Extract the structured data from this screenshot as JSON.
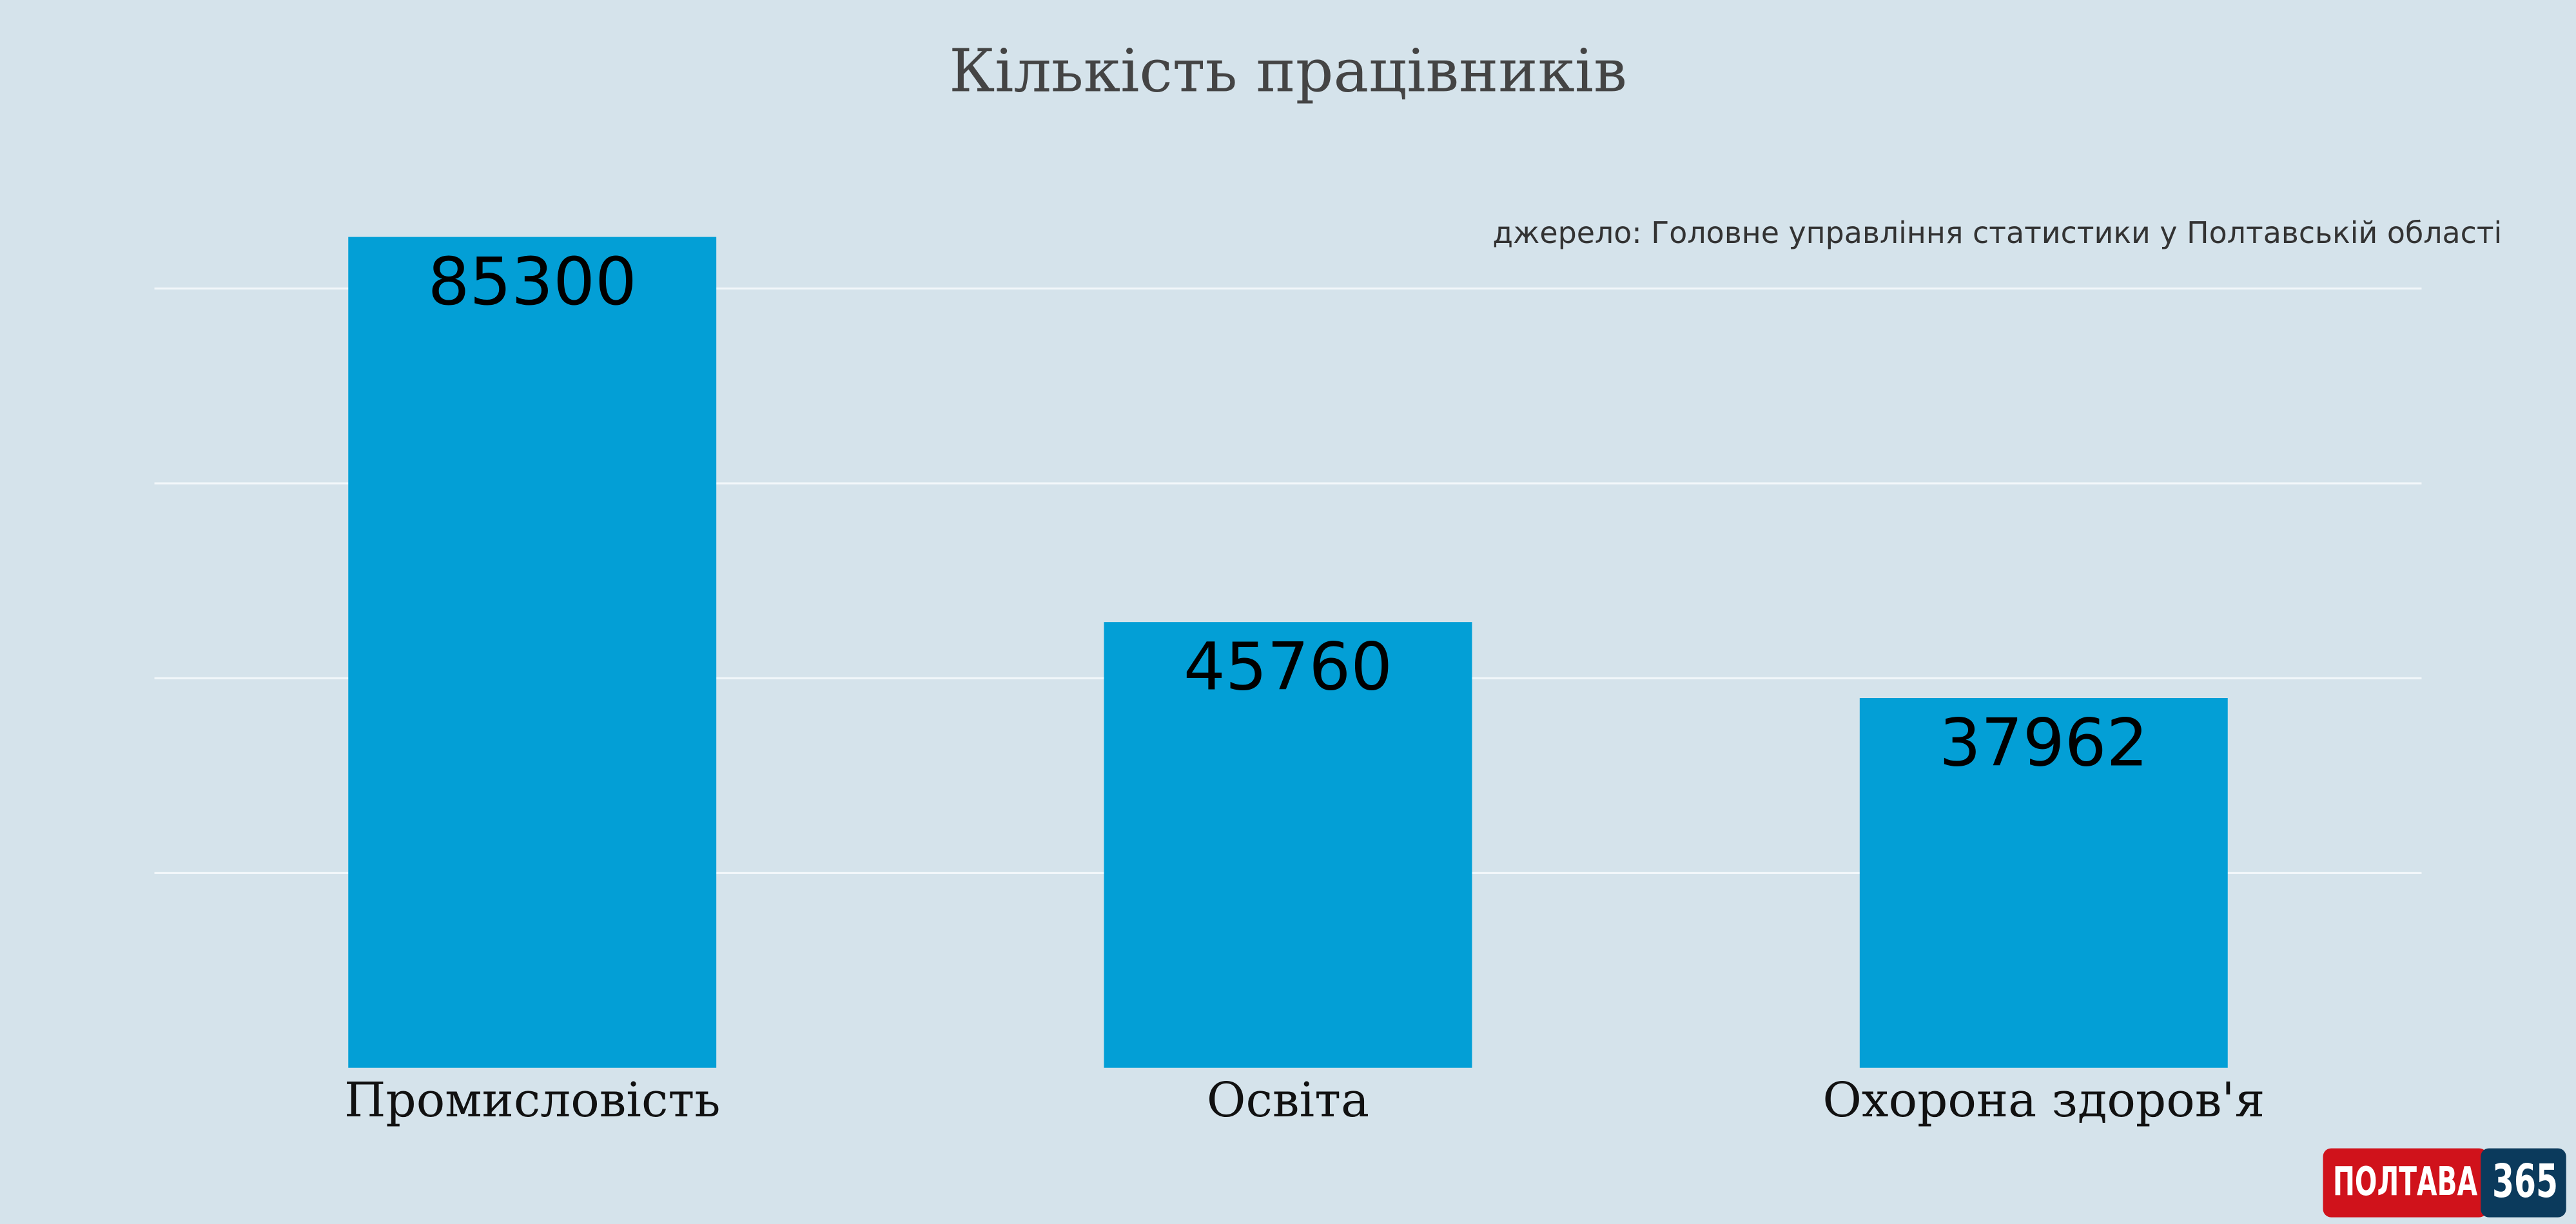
{
  "chart_data": {
    "type": "bar",
    "title": "Кількість працівників",
    "subtitle": "джерело: Головне управління статистики у Полтавській області",
    "categories": [
      "Промисловість",
      "Освіта",
      "Охорона здоров'я"
    ],
    "values": [
      85300,
      45760,
      37962
    ],
    "color": "#039fd6",
    "ylim": [
      0,
      100000
    ],
    "yticks": [
      20000,
      40000,
      60000,
      80000
    ],
    "grid": true
  },
  "logo": {
    "name": "ПОЛТАВА",
    "number": "365"
  }
}
